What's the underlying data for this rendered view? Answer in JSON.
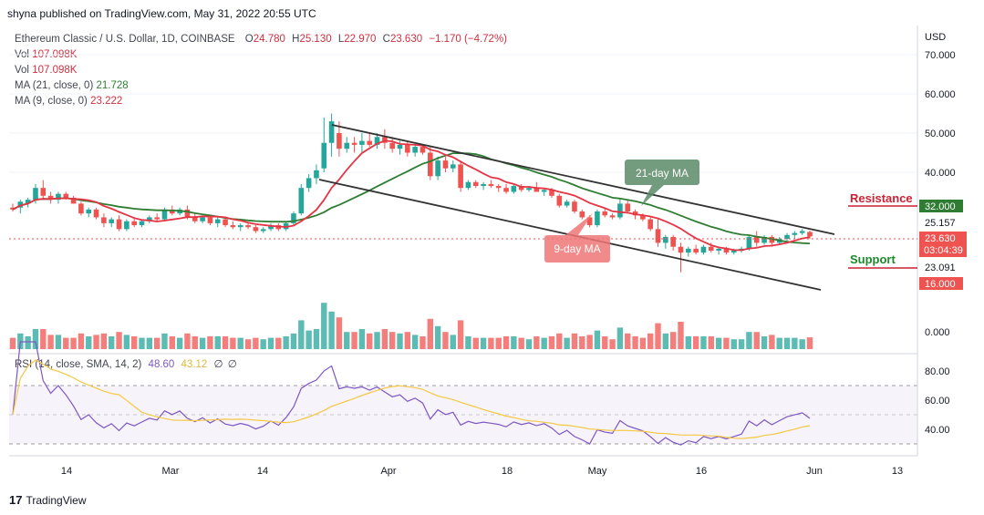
{
  "header": {
    "published": "shyna published on TradingView.com, May 31, 2022 20:55 UTC"
  },
  "legend": {
    "title": "Ethereum Classic / U.S. Dollar, 1D, COINBASE",
    "o_label": "O",
    "o": "24.780",
    "h_label": "H",
    "h": "25.130",
    "l_label": "L",
    "l": "22.970",
    "c_label": "C",
    "c": "23.630",
    "change": "−1.170 (−4.72%)",
    "vol1_label": "Vol",
    "vol1": "107.098K",
    "vol2_label": "Vol",
    "vol2": "107.098K",
    "ma21_label": "MA (21, close, 0)",
    "ma21": "21.728",
    "ma9_label": "MA (9, close, 0)",
    "ma9": "23.222"
  },
  "rsi_legend": {
    "label": "RSI (14, close, SMA, 14, 2)",
    "rsi": "48.60",
    "sma": "43.12",
    "e1": "∅",
    "e2": "∅"
  },
  "footer": {
    "brand": "TradingView",
    "logo": "17"
  },
  "colors": {
    "up": "#26a69a",
    "down": "#ef5350",
    "ma9": "#e53545",
    "ma21": "#2e7d32",
    "rsi": "#7e57c2",
    "rsi_sma": "#f5c842",
    "resistance": "#cc2233",
    "support": "#1a8a2a"
  },
  "chart_data": {
    "type": "candlestick",
    "currency": "USD",
    "price_axis": [
      "70.000",
      "60.000",
      "50.000",
      "40.000",
      "0.000"
    ],
    "price_tags": {
      "resistance_level": "32.000",
      "high_tag": "25.157",
      "last": "23.630",
      "countdown": "03:04:39",
      "low_tag": "23.091",
      "support_level": "16.000"
    },
    "rsi_axis": [
      "80.00",
      "60.00",
      "40.00"
    ],
    "rsi_band": [
      30,
      70
    ],
    "x_axis": [
      "14",
      "Mar",
      "14",
      "Apr",
      "18",
      "May",
      "16",
      "Jun",
      "13"
    ],
    "annotations": {
      "ma21": "21-day MA",
      "ma9": "9-day MA",
      "resistance": "Resistance",
      "support": "Support"
    },
    "ohlc": [
      [
        31,
        32,
        30,
        30.5
      ],
      [
        31,
        33,
        29.5,
        32.5
      ],
      [
        32,
        33.5,
        31,
        33
      ],
      [
        33,
        37,
        32,
        36
      ],
      [
        36,
        38,
        33,
        34
      ],
      [
        34,
        35,
        32,
        33
      ],
      [
        33,
        35,
        32,
        34.5
      ],
      [
        34.5,
        35,
        33,
        33.5
      ],
      [
        33.5,
        34,
        32,
        32
      ],
      [
        32,
        32.5,
        29,
        29.5
      ],
      [
        29.5,
        31,
        28.5,
        30.5
      ],
      [
        30.5,
        31,
        28,
        28.5
      ],
      [
        28.5,
        29.5,
        26,
        27
      ],
      [
        27,
        28.5,
        26,
        28
      ],
      [
        28,
        29,
        25,
        25.5
      ],
      [
        25.5,
        28,
        25,
        27.5
      ],
      [
        27.5,
        28.5,
        26,
        26.5
      ],
      [
        26.5,
        28,
        26,
        27.5
      ],
      [
        27.5,
        29,
        27,
        28.5
      ],
      [
        28.5,
        29.5,
        27.5,
        28
      ],
      [
        28,
        31,
        27.5,
        30.5
      ],
      [
        30.5,
        31.5,
        29,
        29.5
      ],
      [
        29.5,
        31,
        29,
        30.5
      ],
      [
        30.5,
        31.5,
        28,
        28.5
      ],
      [
        28.5,
        29.5,
        27,
        27.5
      ],
      [
        27.5,
        29,
        27,
        28.5
      ],
      [
        28.5,
        29,
        26.5,
        27
      ],
      [
        27,
        28.5,
        26,
        28
      ],
      [
        28,
        28.5,
        26,
        26.5
      ],
      [
        26.5,
        27.5,
        25.5,
        26
      ],
      [
        26,
        27,
        25,
        26.5
      ],
      [
        26.5,
        27,
        25.5,
        26
      ],
      [
        26,
        26.5,
        24.5,
        25
      ],
      [
        25,
        26,
        24.5,
        25.5
      ],
      [
        25.5,
        27,
        25,
        26.5
      ],
      [
        26.5,
        27,
        25,
        25.5
      ],
      [
        25.5,
        27.5,
        25,
        27
      ],
      [
        27,
        30,
        26.5,
        29.5
      ],
      [
        29.5,
        37,
        29,
        36
      ],
      [
        36,
        39.5,
        35,
        38.5
      ],
      [
        38.5,
        42,
        37,
        40.5
      ],
      [
        41,
        54,
        40,
        47.5
      ],
      [
        47.5,
        55,
        44,
        53
      ],
      [
        50,
        53,
        44,
        46
      ],
      [
        46,
        49,
        45,
        47.5
      ],
      [
        47.5,
        49,
        45,
        47
      ],
      [
        47,
        50,
        45,
        48
      ],
      [
        48,
        50,
        46.5,
        47
      ],
      [
        47,
        50,
        46,
        49
      ],
      [
        49,
        51,
        46,
        47.5
      ],
      [
        47.5,
        49,
        45,
        46
      ],
      [
        46,
        48,
        44.5,
        47
      ],
      [
        47,
        48,
        44,
        45
      ],
      [
        45,
        47,
        44,
        46.5
      ],
      [
        46.5,
        47,
        44.5,
        45
      ],
      [
        45,
        46.5,
        38,
        39
      ],
      [
        39,
        44,
        38,
        43
      ],
      [
        43,
        44,
        40,
        41
      ],
      [
        41,
        43,
        40,
        42
      ],
      [
        42,
        43,
        35,
        36
      ],
      [
        36,
        38,
        35.5,
        37.5
      ],
      [
        37.5,
        38,
        36,
        36.5
      ],
      [
        36.5,
        37.5,
        35.5,
        37
      ],
      [
        37,
        38,
        36,
        36.5
      ],
      [
        36.5,
        37,
        35,
        36
      ],
      [
        36,
        37,
        34.5,
        35
      ],
      [
        35,
        37,
        34.5,
        36.5
      ],
      [
        36.5,
        37,
        35,
        35.5
      ],
      [
        35.5,
        36.5,
        35,
        36
      ],
      [
        36,
        37.5,
        35,
        35
      ],
      [
        35,
        36,
        34,
        35.5
      ],
      [
        35.5,
        36,
        33.5,
        34
      ],
      [
        34,
        34.5,
        31,
        31.5
      ],
      [
        31.5,
        33,
        31,
        32.5
      ],
      [
        32.5,
        33,
        29.5,
        30
      ],
      [
        30,
        30.5,
        28,
        28.5
      ],
      [
        28.5,
        29,
        26,
        26.5
      ],
      [
        26.5,
        30.5,
        26,
        30
      ],
      [
        30,
        31,
        28.5,
        29
      ],
      [
        29,
        29.5,
        28,
        28.5
      ],
      [
        28.5,
        33.5,
        28,
        32
      ],
      [
        32,
        33,
        29.5,
        30
      ],
      [
        30,
        30.5,
        28,
        29
      ],
      [
        29,
        29.5,
        27.5,
        28
      ],
      [
        28,
        28.5,
        25,
        25.5
      ],
      [
        25.5,
        28,
        21,
        22
      ],
      [
        22,
        24,
        20.5,
        23.5
      ],
      [
        23.5,
        24,
        20,
        21
      ],
      [
        21,
        22,
        14.5,
        19.5
      ],
      [
        19.5,
        21,
        18.5,
        20.5
      ],
      [
        20.5,
        21.5,
        19,
        19.5
      ],
      [
        19.5,
        21.5,
        19,
        21
      ],
      [
        21,
        22,
        19.5,
        20
      ],
      [
        20,
        21,
        19,
        20.5
      ],
      [
        20.5,
        21,
        19,
        19.5
      ],
      [
        19.5,
        20.5,
        19,
        20
      ],
      [
        20,
        21,
        19.5,
        20.5
      ],
      [
        20.5,
        24,
        20,
        23.5
      ],
      [
        23.5,
        25,
        21,
        22
      ],
      [
        22,
        24,
        21.5,
        23.5
      ],
      [
        23.5,
        24,
        21,
        22
      ],
      [
        22,
        23.5,
        21.5,
        23
      ],
      [
        23,
        24.5,
        22.5,
        24
      ],
      [
        24,
        25,
        23,
        24.5
      ],
      [
        24.5,
        25.5,
        24,
        25
      ],
      [
        24.78,
        25.13,
        22.97,
        23.63
      ]
    ]
  }
}
